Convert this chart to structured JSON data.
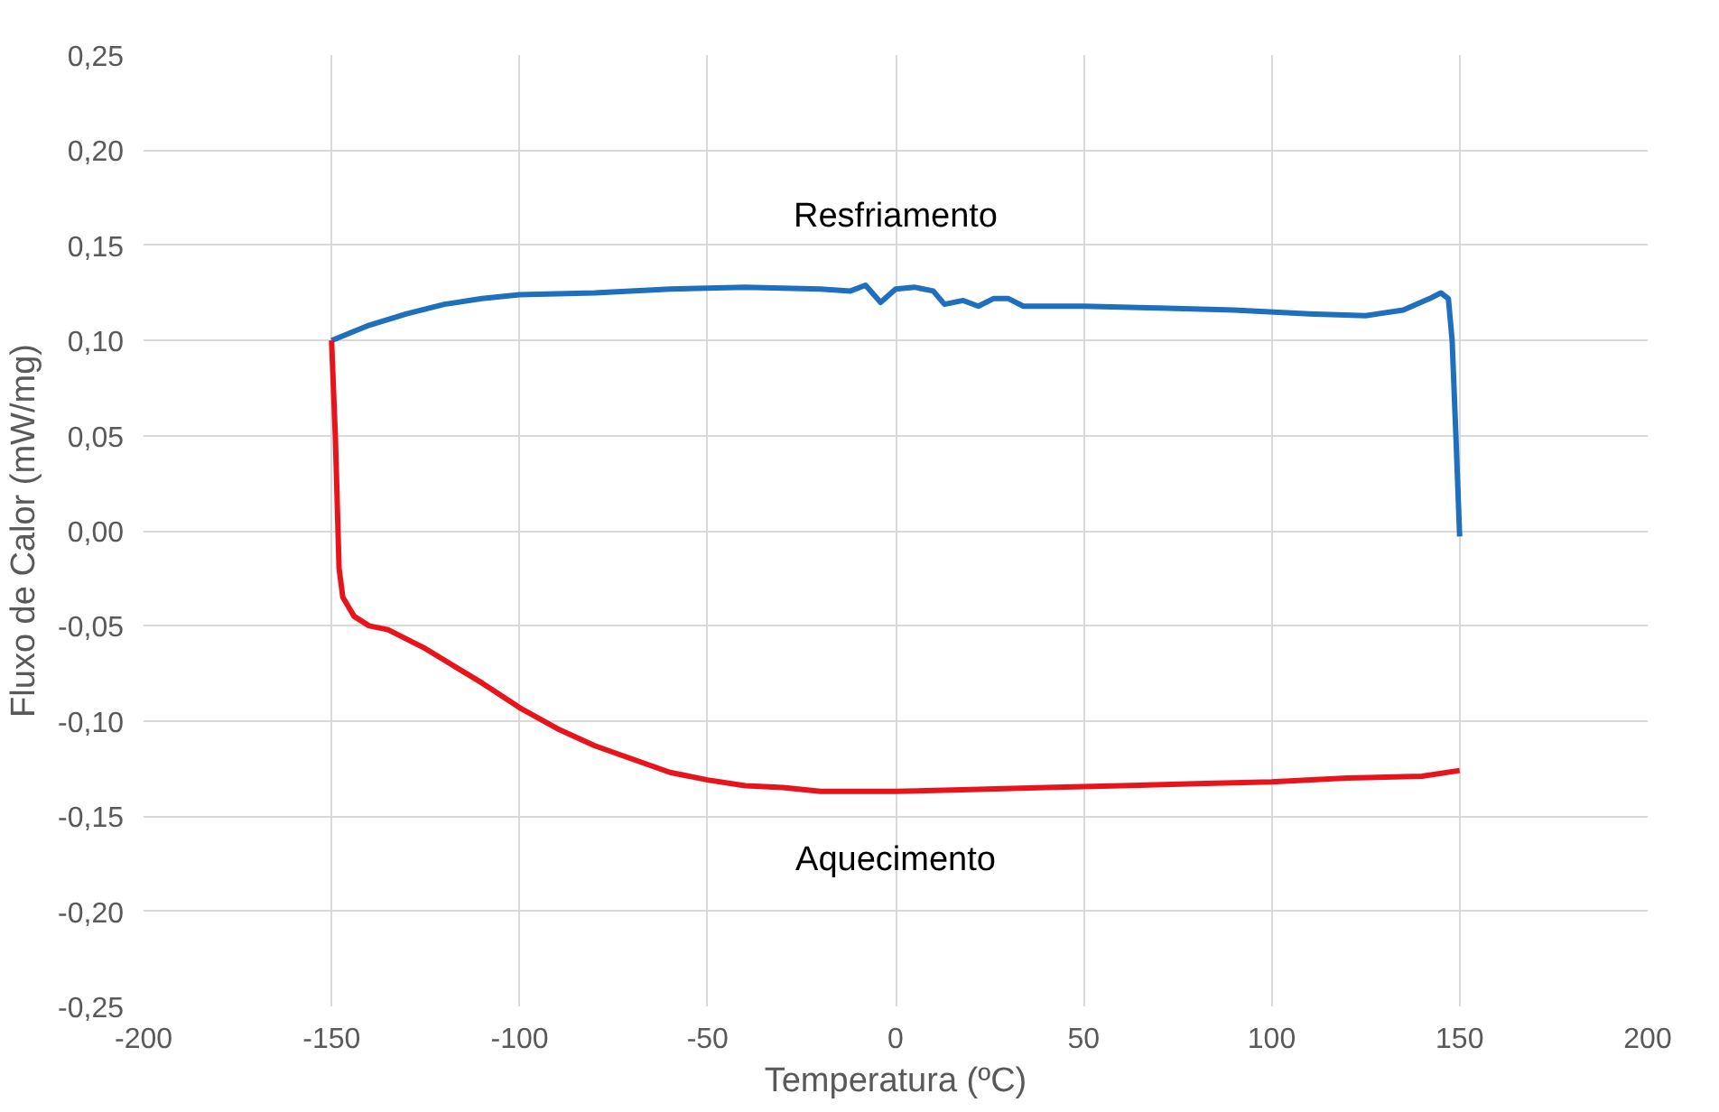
{
  "chart_data": {
    "type": "line",
    "xlabel": "Temperatura (ºC)",
    "ylabel": "Fluxo de Calor (mW/mg)",
    "xlim": [
      -200,
      200
    ],
    "ylim": [
      -0.25,
      0.25
    ],
    "xticks": [
      -200,
      -150,
      -100,
      -50,
      0,
      50,
      100,
      150,
      200
    ],
    "yticks": [
      {
        "value": -0.25,
        "label": "-0,25"
      },
      {
        "value": -0.2,
        "label": "-0,20"
      },
      {
        "value": -0.15,
        "label": "-0,15"
      },
      {
        "value": -0.1,
        "label": "-0,10"
      },
      {
        "value": -0.05,
        "label": "-0,05"
      },
      {
        "value": 0,
        "label": "0,00"
      },
      {
        "value": 0.05,
        "label": "0,05"
      },
      {
        "value": 0.1,
        "label": "0,10"
      },
      {
        "value": 0.15,
        "label": "0,15"
      },
      {
        "value": 0.2,
        "label": "0,20"
      },
      {
        "value": 0.25,
        "label": "0,25"
      }
    ],
    "grid": true,
    "line_style": "solid",
    "marker": "none",
    "series": [
      {
        "color": "#1f6fbf",
        "x": [
          -150,
          -140,
          -130,
          -120,
          -110,
          -100,
          -80,
          -60,
          -40,
          -20,
          -12,
          -8,
          -4,
          0,
          5,
          10,
          13,
          18,
          22,
          26,
          30,
          34,
          50,
          70,
          90,
          110,
          125,
          135,
          142,
          145,
          147,
          148,
          149,
          150
        ],
        "values": [
          0.1,
          0.108,
          0.114,
          0.119,
          0.122,
          0.124,
          0.125,
          0.127,
          0.128,
          0.127,
          0.126,
          0.129,
          0.12,
          0.127,
          0.128,
          0.126,
          0.119,
          0.121,
          0.118,
          0.122,
          0.122,
          0.118,
          0.118,
          0.117,
          0.116,
          0.114,
          0.113,
          0.116,
          0.122,
          0.125,
          0.122,
          0.1,
          0.05,
          -0.003
        ]
      },
      {
        "color": "#e8141c",
        "x": [
          -150,
          -149,
          -148,
          -147,
          -144,
          -140,
          -135,
          -125,
          -110,
          -100,
          -90,
          -80,
          -70,
          -60,
          -50,
          -40,
          -30,
          -20,
          -10,
          0,
          20,
          40,
          60,
          80,
          100,
          120,
          140,
          150
        ],
        "values": [
          0.1,
          0.05,
          -0.02,
          -0.035,
          -0.045,
          -0.05,
          -0.052,
          -0.062,
          -0.08,
          -0.093,
          -0.104,
          -0.113,
          -0.12,
          -0.127,
          -0.131,
          -0.134,
          -0.135,
          -0.137,
          -0.137,
          -0.137,
          -0.136,
          -0.135,
          -0.134,
          -0.133,
          -0.132,
          -0.13,
          -0.129,
          -0.126
        ]
      }
    ],
    "annotations": [
      "Resfriamento",
      "Aquecimento"
    ]
  }
}
